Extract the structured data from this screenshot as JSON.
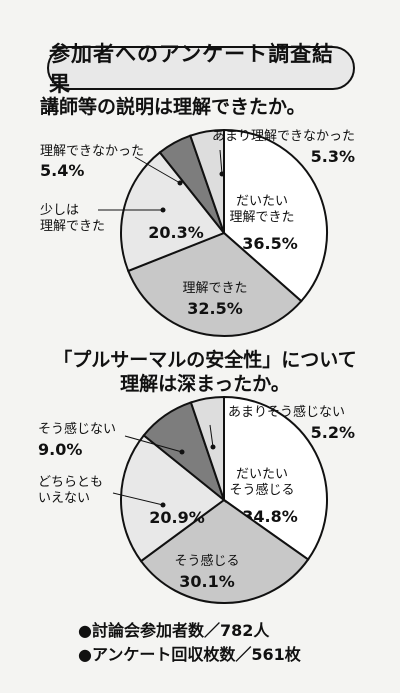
{
  "header": {
    "banner": "参加者へのアンケート調査結果"
  },
  "chart_data": [
    {
      "type": "pie",
      "title_lines": [
        "講師等の説明は理解できたか。"
      ],
      "slices": [
        {
          "label_lines": [
            "だいたい",
            "理解できた"
          ],
          "value": 36.5,
          "pct": "36.5%",
          "color": "#ffffff"
        },
        {
          "label_lines": [
            "理解できた"
          ],
          "value": 32.5,
          "pct": "32.5%",
          "color": "#c8c8c8"
        },
        {
          "label_lines": [
            "少しは",
            "理解できた"
          ],
          "value": 20.3,
          "pct": "20.3%",
          "color": "#e8e8e8"
        },
        {
          "label_lines": [
            "理解できなかった"
          ],
          "value": 5.4,
          "pct": "5.4%",
          "color": "#7d7d7d"
        },
        {
          "label_lines": [
            "あまり理解できなかった"
          ],
          "value": 5.3,
          "pct": "5.3%",
          "color": "#dddddd"
        }
      ]
    },
    {
      "type": "pie",
      "title_lines": [
        "「プルサーマルの安全性」について",
        "理解は深まったか。"
      ],
      "slices": [
        {
          "label_lines": [
            "だいたい",
            "そう感じる"
          ],
          "value": 34.8,
          "pct": "34.8%",
          "color": "#ffffff"
        },
        {
          "label_lines": [
            "そう感じる"
          ],
          "value": 30.1,
          "pct": "30.1%",
          "color": "#c8c8c8"
        },
        {
          "label_lines": [
            "どちらとも",
            "いえない"
          ],
          "value": 20.9,
          "pct": "20.9%",
          "color": "#e8e8e8"
        },
        {
          "label_lines": [
            "そう感じない"
          ],
          "value": 9.0,
          "pct": "9.0%",
          "color": "#7d7d7d"
        },
        {
          "label_lines": [
            "あまりそう感じない"
          ],
          "value": 5.2,
          "pct": "5.2%",
          "color": "#dddddd"
        }
      ]
    }
  ],
  "footer": {
    "participants": "●討論会参加者数／782人",
    "responses": "●アンケート回収枚数／561枚"
  }
}
